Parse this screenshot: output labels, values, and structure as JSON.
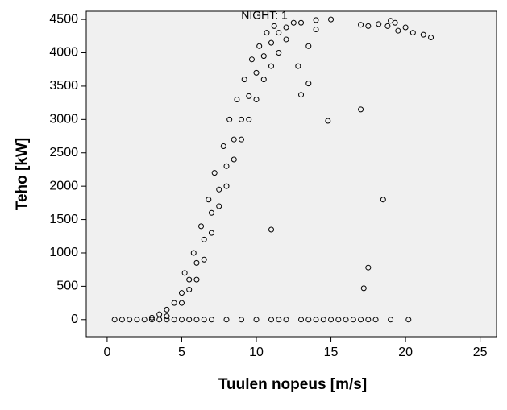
{
  "chart_data": {
    "type": "scatter",
    "title": "NIGHT: 1",
    "x_label": "Tuulen nopeus [m/s]",
    "y_label": "Teho [kW]",
    "x": [
      0.5,
      1,
      1.5,
      2,
      2.5,
      3,
      3.5,
      4,
      4.5,
      5,
      5.5,
      6,
      6.5,
      7,
      8,
      9,
      10,
      11,
      11.5,
      12,
      13,
      13.5,
      14,
      14.5,
      15,
      15.5,
      16,
      16.5,
      17,
      17.5,
      18,
      19,
      20.2,
      3,
      3.5,
      4,
      4.5,
      5,
      5.5,
      6,
      6.5,
      7,
      7.5,
      8,
      8.5,
      9,
      9.5,
      10,
      10.5,
      11,
      11.5,
      12,
      13,
      14,
      15,
      4,
      5,
      5.5,
      6,
      6.5,
      7,
      7.5,
      8,
      8.5,
      9,
      9.5,
      10,
      10.5,
      11,
      11.5,
      12,
      5.2,
      5.8,
      6.3,
      6.8,
      7.2,
      7.8,
      8.2,
      8.7,
      9.2,
      9.7,
      10.2,
      10.7,
      11.2,
      12.5,
      11,
      14.8,
      17,
      18.5,
      17.5,
      17.2,
      13.5,
      13,
      12.8,
      13.5,
      14,
      17,
      17.5,
      18.2,
      19,
      19.3,
      20,
      20.5,
      21.2,
      21.7,
      19.5,
      18.8
    ],
    "y": [
      0,
      0,
      0,
      0,
      0,
      0,
      0,
      0,
      0,
      0,
      0,
      0,
      0,
      0,
      0,
      0,
      0,
      0,
      0,
      0,
      0,
      0,
      0,
      0,
      0,
      0,
      0,
      0,
      0,
      0,
      0,
      0,
      0,
      30,
      80,
      150,
      250,
      400,
      600,
      850,
      1200,
      1600,
      1950,
      2300,
      2700,
      3000,
      3350,
      3700,
      3950,
      4150,
      4300,
      4380,
      4450,
      4490,
      4500,
      50,
      250,
      450,
      600,
      900,
      1300,
      1700,
      2000,
      2400,
      2700,
      3000,
      3300,
      3600,
      3800,
      4000,
      4200,
      700,
      1000,
      1400,
      1800,
      2200,
      2600,
      3000,
      3300,
      3600,
      3900,
      4100,
      4300,
      4400,
      4450,
      1350,
      2980,
      3150,
      1800,
      780,
      470,
      3540,
      3370,
      3800,
      4100,
      4350,
      4420,
      4400,
      4430,
      4480,
      4450,
      4380,
      4300,
      4270,
      4230,
      4330,
      4400
    ],
    "xlim": [
      -1.4,
      26.1
    ],
    "ylim": [
      -256,
      4622
    ],
    "xticks": [
      0,
      5,
      10,
      15,
      20,
      25
    ],
    "yticks": [
      0,
      500,
      1000,
      1500,
      2000,
      2500,
      3000,
      3500,
      4000,
      4500
    ],
    "color": "#000000"
  }
}
